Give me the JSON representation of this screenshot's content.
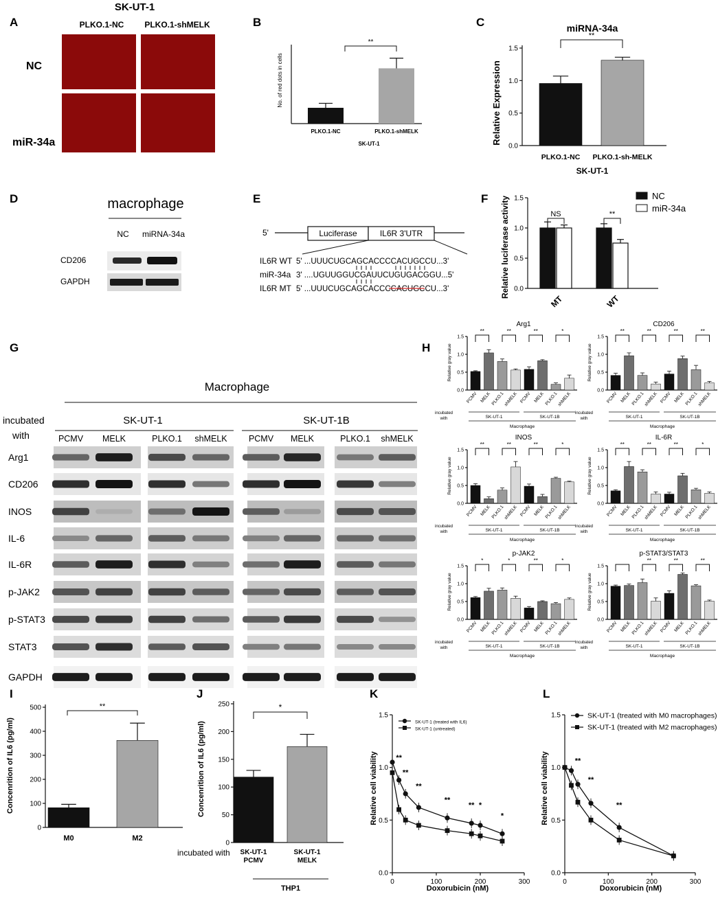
{
  "panels": {
    "A": {
      "letter": "A",
      "title": "SK-UT-1",
      "col_labels": [
        "PLKO.1-NC",
        "PLKO.1-shMELK"
      ],
      "row_labels": [
        "NC",
        "miR-34a"
      ],
      "tile_color": "#8b0a0a"
    },
    "B": {
      "letter": "B",
      "ylabel": "No. of red dots in cells",
      "xlabel": "SK-UT-1",
      "sig": "**"
    },
    "C": {
      "letter": "C",
      "title": "miRNA-34a",
      "ylabel": "Relative Expression",
      "xlabel": "SK-UT-1",
      "sig": "**"
    },
    "D": {
      "letter": "D",
      "title": "macrophage",
      "col_labels": [
        "NC",
        "miRNA-34a"
      ],
      "row_labels": [
        "CD206",
        "GAPDH"
      ]
    },
    "E": {
      "letter": "E",
      "five_prime": "5'",
      "box1": "Luciferase",
      "box2": "IL6R 3'UTR",
      "rows": [
        {
          "name": "IL6R WT",
          "seq": "5' ...UUUCUGCAGCACCCCACUGCCU...3'"
        },
        {
          "name": "miR-34a",
          "seq": "3' ....UGUUGGUCGAUUCUGUGACGGU...5'"
        },
        {
          "name": "IL6R MT",
          "seq": "5' ...UUUCUGCAGCACCCCACUGCCU...3'"
        }
      ]
    },
    "F": {
      "letter": "F",
      "ylabel": "Relative luciferase activity",
      "legend": [
        "NC",
        "miR-34a"
      ],
      "sig": [
        "NS",
        "**"
      ]
    },
    "G": {
      "letter": "G",
      "title": "Macrophage",
      "incubated": "incubated",
      "with": "with",
      "groups": [
        "SK-UT-1",
        "SK-UT-1B"
      ],
      "lanes": [
        "PCMV",
        "MELK",
        "PLKO.1",
        "shMELK",
        "PCMV",
        "MELK",
        "PLKO.1",
        "shMELK"
      ],
      "rows": [
        "Arg1",
        "CD206",
        "INOS",
        "IL-6",
        "IL-6R",
        "p-JAK2",
        "p-STAT3",
        "STAT3",
        "GAPDH"
      ]
    },
    "H": {
      "letter": "H",
      "ylabel": "Relative gray value",
      "incubated": "incubated",
      "with": "with",
      "groups": [
        "SK-UT-1",
        "SK-UT-1B"
      ],
      "footer": "Macrophage",
      "lanes": [
        "PCMV",
        "MELK",
        "PLKO.1",
        "shMELK",
        "PCMV",
        "MELK",
        "PLKO.1",
        "shMELK"
      ]
    },
    "I": {
      "letter": "I",
      "ylabel": "Concenrition of IL6 (pg/ml)",
      "sig": "**"
    },
    "J": {
      "letter": "J",
      "ylabel": "Concenrition of IL6 (pg/ml)",
      "incubated_with": "incubated with",
      "xlabel": "THP1",
      "sig": "*"
    },
    "K": {
      "letter": "K",
      "ylabel": "Relative cell viability",
      "xlabel": "Doxorubicin (nM)",
      "legend": [
        "SK-UT-1 (treated with IL6)",
        "SK-UT-1 (untreated)"
      ],
      "sig": [
        "**",
        "**",
        "**",
        "**",
        "**",
        "*",
        "*"
      ]
    },
    "L": {
      "letter": "L",
      "ylabel": "Relative cell viability",
      "xlabel": "Doxorubicin (nM)",
      "legend": [
        "SK-UT-1 (treated with M0 macrophages)",
        "SK-UT-1 (treated with M2 macrophages)"
      ],
      "sig": [
        "**",
        "**",
        "**"
      ]
    }
  },
  "chart_data": [
    {
      "id": "B",
      "type": "bar",
      "categories": [
        "PLKO.1-NC",
        "PLKO.1-shMELK"
      ],
      "values": [
        14,
        49
      ],
      "errors": [
        4,
        9
      ],
      "colors": [
        "#111111",
        "#a6a6a6"
      ],
      "ylabel": "No. of red dots in cells",
      "xlabel": "SK-UT-1",
      "ylim": [
        0,
        70
      ],
      "yticks": []
    },
    {
      "id": "C",
      "type": "bar",
      "categories": [
        "PLKO.1-NC",
        "PLKO.1-sh-MELK"
      ],
      "values": [
        1.02,
        1.4
      ],
      "errors": [
        0.12,
        0.05
      ],
      "colors": [
        "#111111",
        "#a6a6a6"
      ],
      "title": "miRNA-34a",
      "ylabel": "Relative Expression",
      "xlabel": "SK-UT-1",
      "ylim": [
        0,
        1.6
      ],
      "yticks": [
        "0.0",
        "0.5",
        "1.0",
        "1.5"
      ]
    },
    {
      "id": "F",
      "type": "bar",
      "categories": [
        "MT",
        "WT"
      ],
      "series": [
        {
          "name": "NC",
          "values": [
            1.0,
            1.0
          ],
          "errors": [
            0.1,
            0.07
          ],
          "color": "#111111"
        },
        {
          "name": "miR-34a",
          "values": [
            1.0,
            0.75
          ],
          "errors": [
            0.05,
            0.06
          ],
          "color": "#ffffff"
        }
      ],
      "ylabel": "Relative luciferase activity",
      "ylim": [
        0,
        1.5
      ],
      "yticks": [
        "0.0",
        "0.5",
        "1.0",
        "1.5"
      ]
    },
    {
      "id": "H1",
      "type": "bar",
      "title": "Arg1",
      "values": [
        0.52,
        1.04,
        0.8,
        0.56,
        0.58,
        0.82,
        0.16,
        0.33
      ],
      "errors": [
        0.02,
        0.09,
        0.07,
        0.03,
        0.07,
        0.03,
        0.04,
        0.09
      ],
      "sig": [
        {
          "from": 0,
          "to": 1,
          "label": "**"
        },
        {
          "from": 2,
          "to": 3,
          "label": "**"
        },
        {
          "from": 4,
          "to": 5,
          "label": "**"
        },
        {
          "from": 6,
          "to": 7,
          "label": "*"
        }
      ],
      "ylim": [
        0,
        1.5
      ],
      "yticks": [
        "0.0",
        "0.5",
        "1.0",
        "1.5"
      ]
    },
    {
      "id": "H2",
      "type": "bar",
      "title": "CD206",
      "values": [
        0.41,
        0.96,
        0.41,
        0.17,
        0.45,
        0.88,
        0.57,
        0.2
      ],
      "errors": [
        0.06,
        0.08,
        0.07,
        0.05,
        0.08,
        0.07,
        0.12,
        0.04
      ],
      "sig": [
        {
          "from": 0,
          "to": 1,
          "label": "**"
        },
        {
          "from": 2,
          "to": 3,
          "label": "**"
        },
        {
          "from": 4,
          "to": 5,
          "label": "**"
        },
        {
          "from": 6,
          "to": 7,
          "label": "**"
        }
      ],
      "ylim": [
        0,
        1.5
      ],
      "yticks": [
        "0.0",
        "0.5",
        "1.0",
        "1.5"
      ]
    },
    {
      "id": "H3",
      "type": "bar",
      "title": "INOS",
      "values": [
        0.5,
        0.13,
        0.37,
        1.02,
        0.48,
        0.19,
        0.7,
        0.6
      ],
      "errors": [
        0.05,
        0.05,
        0.06,
        0.15,
        0.06,
        0.06,
        0.03,
        0.02
      ],
      "sig": [
        {
          "from": 0,
          "to": 1,
          "label": "**"
        },
        {
          "from": 2,
          "to": 3,
          "label": "**"
        },
        {
          "from": 4,
          "to": 5,
          "label": "**"
        },
        {
          "from": 6,
          "to": 7,
          "label": "*"
        }
      ],
      "ylim": [
        0,
        1.5
      ],
      "yticks": [
        "0.0",
        "0.5",
        "1.0",
        "1.5"
      ]
    },
    {
      "id": "H4",
      "type": "bar",
      "title": "IL-6R",
      "values": [
        0.35,
        1.03,
        0.88,
        0.26,
        0.26,
        0.77,
        0.38,
        0.28
      ],
      "errors": [
        0.03,
        0.14,
        0.06,
        0.06,
        0.05,
        0.07,
        0.04,
        0.04
      ],
      "sig": [
        {
          "from": 0,
          "to": 1,
          "label": "**"
        },
        {
          "from": 2,
          "to": 3,
          "label": "**"
        },
        {
          "from": 4,
          "to": 5,
          "label": "**"
        },
        {
          "from": 6,
          "to": 7,
          "label": "*"
        }
      ],
      "ylim": [
        0,
        1.5
      ],
      "yticks": [
        "0.0",
        "0.5",
        "1.0",
        "1.5"
      ]
    },
    {
      "id": "H5",
      "type": "bar",
      "title": "p-JAK2",
      "values": [
        0.61,
        0.79,
        0.82,
        0.59,
        0.32,
        0.5,
        0.44,
        0.56
      ],
      "errors": [
        0.03,
        0.08,
        0.06,
        0.06,
        0.04,
        0.02,
        0.03,
        0.04
      ],
      "sig": [
        {
          "from": 0,
          "to": 1,
          "label": "*"
        },
        {
          "from": 2,
          "to": 3,
          "label": "*"
        },
        {
          "from": 4,
          "to": 5,
          "label": "**"
        },
        {
          "from": 6,
          "to": 7,
          "label": "*"
        }
      ],
      "ylim": [
        0,
        1.5
      ],
      "yticks": [
        "0.0",
        "0.5",
        "1.0",
        "1.5"
      ]
    },
    {
      "id": "H6",
      "type": "bar",
      "title": "p-STAT3/STAT3",
      "values": [
        0.93,
        0.95,
        1.03,
        0.51,
        0.73,
        1.26,
        0.94,
        0.51
      ],
      "errors": [
        0.03,
        0.04,
        0.1,
        0.09,
        0.07,
        0.04,
        0.03,
        0.03
      ],
      "sig": [
        {
          "from": 0,
          "to": 1,
          "label": ""
        },
        {
          "from": 2,
          "to": 3,
          "label": "**"
        },
        {
          "from": 4,
          "to": 5,
          "label": "**"
        },
        {
          "from": 6,
          "to": 7,
          "label": "**"
        }
      ],
      "ylim": [
        0,
        1.5
      ],
      "yticks": [
        "0.0",
        "0.5",
        "1.0",
        "1.5"
      ]
    },
    {
      "id": "I",
      "type": "bar",
      "categories": [
        "M0",
        "M2"
      ],
      "values": [
        82,
        362
      ],
      "errors": [
        14,
        72
      ],
      "colors": [
        "#111111",
        "#a6a6a6"
      ],
      "ylabel": "Concenrition of IL6 (pg/ml)",
      "ylim": [
        0,
        500
      ],
      "yticks": [
        "0",
        "100",
        "200",
        "300",
        "400",
        "500"
      ]
    },
    {
      "id": "J",
      "type": "bar",
      "categories": [
        [
          "SK-UT-1",
          "PCMV"
        ],
        [
          "SK-UT-1",
          "MELK"
        ]
      ],
      "values": [
        118,
        173
      ],
      "errors": [
        12,
        22
      ],
      "colors": [
        "#111111",
        "#a6a6a6"
      ],
      "ylabel": "Concenrition of IL6 (pg/ml)",
      "xlabel": "THP1",
      "ylim": [
        0,
        250
      ],
      "yticks": [
        "0",
        "50",
        "100",
        "150",
        "200",
        "250"
      ]
    },
    {
      "id": "K",
      "type": "line",
      "x": [
        0,
        15,
        30,
        60,
        125,
        180,
        200,
        250
      ],
      "series": [
        {
          "name": "SK-UT-1 (treated with IL6)",
          "values": [
            1.05,
            0.88,
            0.75,
            0.62,
            0.52,
            0.47,
            0.45,
            0.37
          ]
        },
        {
          "name": "SK-UT-1 (untreated)",
          "values": [
            0.95,
            0.6,
            0.5,
            0.45,
            0.4,
            0.37,
            0.35,
            0.3
          ]
        }
      ],
      "ylabel": "Relative cell viability",
      "xlabel": "Doxorubicin (nM)",
      "xlim": [
        0,
        300
      ],
      "ylim": [
        0,
        1.5
      ],
      "xticks": [
        "0",
        "100",
        "200",
        "300"
      ],
      "yticks": [
        "0.0",
        "0.5",
        "1.0",
        "1.5"
      ]
    },
    {
      "id": "L",
      "type": "line",
      "x": [
        0,
        15,
        30,
        60,
        125,
        250
      ],
      "series": [
        {
          "name": "SK-UT-1 (treated with M0 macrophages)",
          "values": [
            1.0,
            0.97,
            0.84,
            0.66,
            0.43,
            0.16
          ]
        },
        {
          "name": "SK-UT-1 (treated with M2 macrophages)",
          "values": [
            1.0,
            0.83,
            0.67,
            0.5,
            0.31,
            0.16
          ]
        }
      ],
      "ylabel": "Relative cell viability",
      "xlabel": "Doxorubicin (nM)",
      "xlim": [
        0,
        300
      ],
      "ylim": [
        0,
        1.5
      ],
      "xticks": [
        "0",
        "100",
        "200",
        "300"
      ],
      "yticks": [
        "0.0",
        "0.5",
        "1.0",
        "1.5"
      ]
    }
  ]
}
